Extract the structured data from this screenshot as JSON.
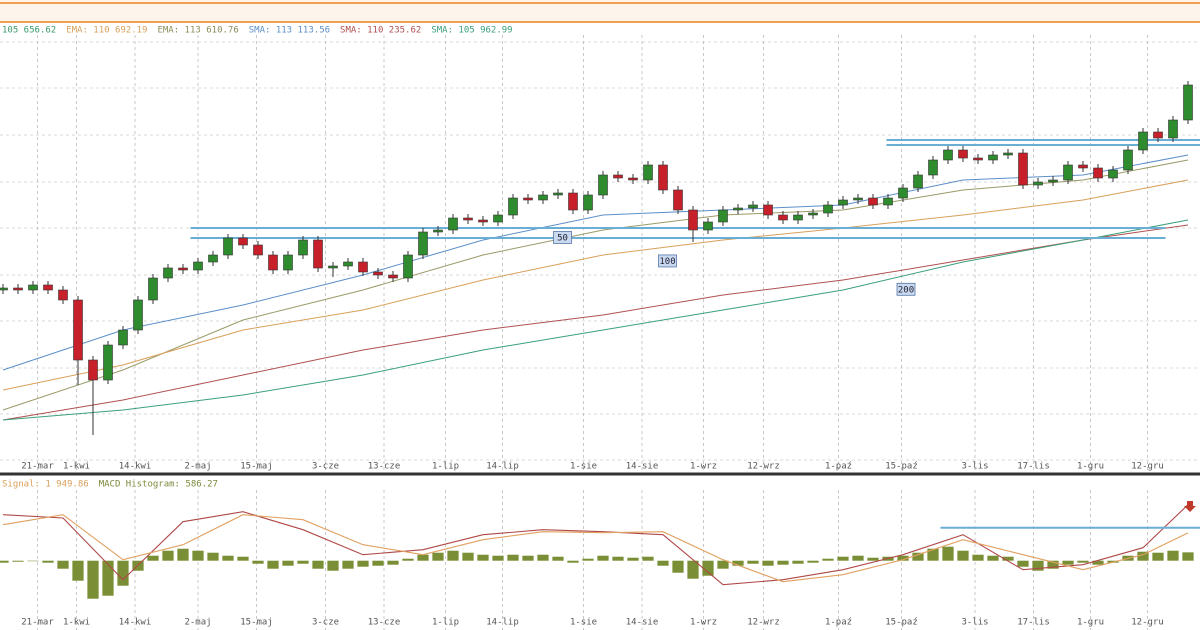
{
  "chart_data": [
    {
      "type": "candlestick",
      "readouts": [
        {
          "text": "105 656.62",
          "color": "#3a9a6a"
        },
        {
          "text": "EMA: 110 692.19",
          "color": "#d9a05b"
        },
        {
          "text": "EMA: 113 610.76",
          "color": "#8c8c5a"
        },
        {
          "text": "SMA: 113 113.56",
          "color": "#5b8fc7"
        },
        {
          "text": "SMA: 110 235.62",
          "color": "#b05050"
        },
        {
          "text": "SMA: 105 962.99",
          "color": "#3aa07a"
        }
      ],
      "xlim": [
        -0.2,
        79.8
      ],
      "ylim": [
        81000,
        124500
      ],
      "xticks": [
        {
          "value": 2.3,
          "label": "21-mar"
        },
        {
          "value": 4.9,
          "label": "1-kwi"
        },
        {
          "value": 8.8,
          "label": "14-kwi"
        },
        {
          "value": 13,
          "label": "2-maj"
        },
        {
          "value": 16.9,
          "label": "15-maj"
        },
        {
          "value": 21.5,
          "label": "3-cze"
        },
        {
          "value": 25.4,
          "label": "13-cze"
        },
        {
          "value": 29.5,
          "label": "1-lip"
        },
        {
          "value": 33.3,
          "label": "14-lip"
        },
        {
          "value": 38.7,
          "label": "1-sie"
        },
        {
          "value": 42.6,
          "label": "14-sie"
        },
        {
          "value": 46.7,
          "label": "1-wrz"
        },
        {
          "value": 50.7,
          "label": "12-wrz"
        },
        {
          "value": 55.7,
          "label": "1-paź"
        },
        {
          "value": 59.9,
          "label": "15-paź"
        },
        {
          "value": 64.8,
          "label": "3-lis"
        },
        {
          "value": 68.7,
          "label": "17-lis"
        },
        {
          "value": 72.5,
          "label": "1-gru"
        },
        {
          "value": 76.3,
          "label": "12-gru"
        }
      ],
      "ygrid": [
        123800,
        119200,
        114500,
        109800,
        105200,
        100500,
        95900,
        91200,
        86600,
        82000
      ],
      "up_color": "#2e8b2e",
      "down_color": "#c8202a",
      "open": [
        99000,
        99200,
        99000,
        99500,
        99000,
        98000,
        92000,
        90000,
        93500,
        95000,
        98000,
        100200,
        101200,
        101000,
        101800,
        102500,
        104200,
        103500,
        102500,
        101000,
        102500,
        104000,
        101200,
        101400,
        101800,
        100800,
        100500,
        100200,
        102500,
        104800,
        105000,
        106200,
        106000,
        105800,
        106500,
        108200,
        108000,
        108500,
        108700,
        107000,
        108500,
        110500,
        110200,
        110000,
        111500,
        109000,
        107000,
        105000,
        105800,
        107000,
        107200,
        107500,
        106500,
        106000,
        106500,
        106700,
        107500,
        108000,
        108200,
        107500,
        108200,
        109200,
        110500,
        112000,
        113000,
        112200,
        112000,
        112500,
        112700,
        109500,
        109800,
        110000,
        111500,
        111200,
        110200,
        111000,
        113000,
        114800,
        114200,
        116000
      ],
      "high": [
        99600,
        99600,
        99900,
        99900,
        99400,
        98400,
        92400,
        93900,
        95400,
        98400,
        100600,
        101600,
        101600,
        102200,
        102900,
        104600,
        104600,
        103900,
        102900,
        102900,
        104400,
        104400,
        101800,
        102200,
        102200,
        101200,
        100900,
        102900,
        105200,
        105400,
        106600,
        106600,
        106400,
        106900,
        108600,
        108600,
        108900,
        109100,
        109100,
        108900,
        110900,
        110900,
        110600,
        111900,
        111900,
        109400,
        107400,
        106200,
        107400,
        107600,
        107900,
        107900,
        106900,
        106900,
        107100,
        107900,
        108400,
        108600,
        108600,
        108600,
        109600,
        110900,
        112400,
        113400,
        113400,
        112600,
        112900,
        113100,
        113100,
        110200,
        110400,
        111900,
        111900,
        111600,
        111400,
        113400,
        115200,
        115200,
        116400,
        119900
      ],
      "low": [
        98600,
        98600,
        98600,
        98600,
        97600,
        89500,
        84500,
        89600,
        93100,
        94600,
        97600,
        99800,
        100600,
        100600,
        101400,
        102100,
        103100,
        102100,
        100600,
        100600,
        102100,
        100800,
        100300,
        101000,
        100400,
        100100,
        99800,
        99800,
        102100,
        104400,
        104600,
        105600,
        105400,
        105400,
        106100,
        107600,
        107600,
        108100,
        106600,
        106600,
        108100,
        109800,
        109600,
        109600,
        108600,
        106600,
        103800,
        104600,
        105400,
        106600,
        106800,
        106100,
        105600,
        105600,
        106100,
        106300,
        107100,
        107600,
        107100,
        107100,
        107800,
        108800,
        110100,
        111600,
        111800,
        111600,
        111600,
        112100,
        109100,
        109100,
        109400,
        109600,
        110800,
        109800,
        109800,
        110600,
        112600,
        113800,
        113800,
        115600
      ],
      "close": [
        99200,
        99000,
        99500,
        99000,
        98000,
        92000,
        90000,
        93500,
        95000,
        98000,
        100200,
        101200,
        101000,
        101800,
        102500,
        104200,
        103500,
        102500,
        101000,
        102500,
        104000,
        101200,
        101400,
        101800,
        100800,
        100500,
        100200,
        102500,
        104800,
        105000,
        106200,
        106000,
        105800,
        106500,
        108200,
        108000,
        108500,
        108700,
        107000,
        108500,
        110500,
        110200,
        110000,
        111500,
        109000,
        107000,
        105000,
        105800,
        107000,
        107200,
        107500,
        106500,
        106000,
        106500,
        106700,
        107500,
        108000,
        108200,
        107500,
        108200,
        109200,
        110500,
        112000,
        113000,
        112200,
        112000,
        112500,
        112700,
        109500,
        109800,
        110000,
        111500,
        111200,
        110200,
        111000,
        113000,
        114800,
        114200,
        116000,
        119500
      ],
      "ma_x": [
        0,
        8,
        16,
        24,
        32,
        40,
        48,
        56,
        64,
        72,
        79
      ],
      "series": [
        {
          "color": "#5b8fc7",
          "label": "50",
          "values": [
            91000,
            95000,
            97500,
            100500,
            104000,
            106500,
            107000,
            107500,
            110000,
            110500,
            112500
          ]
        },
        {
          "color": "#9a9a68",
          "values": [
            87000,
            91000,
            96000,
            99000,
            102500,
            105000,
            106500,
            107000,
            109000,
            110000,
            112000
          ]
        },
        {
          "color": "#d9a05b",
          "label": "100",
          "values": [
            89000,
            91500,
            95000,
            97000,
            100000,
            102500,
            104000,
            105200,
            106500,
            108000,
            110000
          ]
        },
        {
          "color": "#b05050",
          "values": [
            86000,
            88000,
            90500,
            93000,
            95000,
            96500,
            98500,
            100000,
            102000,
            104000,
            105500
          ]
        },
        {
          "color": "#3aa07a",
          "label": "200",
          "values": [
            86000,
            87000,
            88500,
            90500,
            93000,
            95000,
            97000,
            99000,
            101800,
            104000,
            106000
          ]
        }
      ],
      "level_color": "#6aaed6",
      "levels": [
        {
          "value": 105200,
          "x": [
            12.5,
            77.5
          ]
        },
        {
          "value": 104200,
          "x": [
            12.5,
            77.5
          ]
        },
        {
          "value": 114000,
          "x": [
            58.9,
            79.8
          ]
        },
        {
          "value": 113500,
          "x": [
            58.9,
            79.8
          ]
        }
      ]
    },
    {
      "type": "macd",
      "readouts": [
        {
          "text": "Signal: 1 949.86",
          "color": "#d9a05b"
        },
        {
          "text": "MACD Histogram: 586.27",
          "color": "#7a8a3a"
        }
      ],
      "xlim": [
        -0.2,
        79.8
      ],
      "ylim": [
        -4500,
        5300
      ],
      "histogram_color": "#7a8f35",
      "histogram": [
        -140,
        -70,
        0,
        -140,
        -560,
        -1400,
        -2660,
        -2450,
        -1750,
        -700,
        350,
        700,
        840,
        700,
        560,
        350,
        280,
        -210,
        -560,
        -350,
        -210,
        -560,
        -700,
        -560,
        -420,
        -350,
        -280,
        140,
        420,
        560,
        700,
        560,
        420,
        350,
        420,
        350,
        420,
        280,
        -140,
        140,
        350,
        280,
        210,
        280,
        -350,
        -840,
        -1260,
        -1050,
        -560,
        -350,
        -210,
        -350,
        -280,
        -210,
        -140,
        140,
        280,
        350,
        210,
        280,
        350,
        560,
        840,
        980,
        700,
        420,
        350,
        280,
        -420,
        -700,
        -560,
        -280,
        -140,
        -280,
        -140,
        350,
        630,
        560,
        700,
        586.27
      ],
      "line_x": [
        0,
        4,
        8,
        12,
        16,
        20,
        24,
        28,
        32,
        36,
        40,
        44,
        48,
        52,
        56,
        60,
        64,
        68,
        72,
        76,
        79
      ],
      "series": [
        {
          "color": "#b04848",
          "values": [
            3220,
            2990,
            -1330,
            2730,
            3430,
            2170,
            420,
            770,
            1820,
            2170,
            2030,
            1820,
            -1680,
            -1330,
            -630,
            420,
            1820,
            -630,
            -280,
            910,
            3920
          ]
        },
        {
          "color": "#e0a060",
          "values": [
            2520,
            3220,
            70,
            1120,
            3220,
            2870,
            1120,
            420,
            1470,
            2030,
            1960,
            2030,
            70,
            -1470,
            -980,
            70,
            1470,
            420,
            -630,
            420,
            1950
          ]
        }
      ],
      "level_color": "#6aaed6",
      "levels": [
        {
          "value": 2310,
          "x": [
            62.5,
            79.8
          ]
        }
      ]
    }
  ]
}
